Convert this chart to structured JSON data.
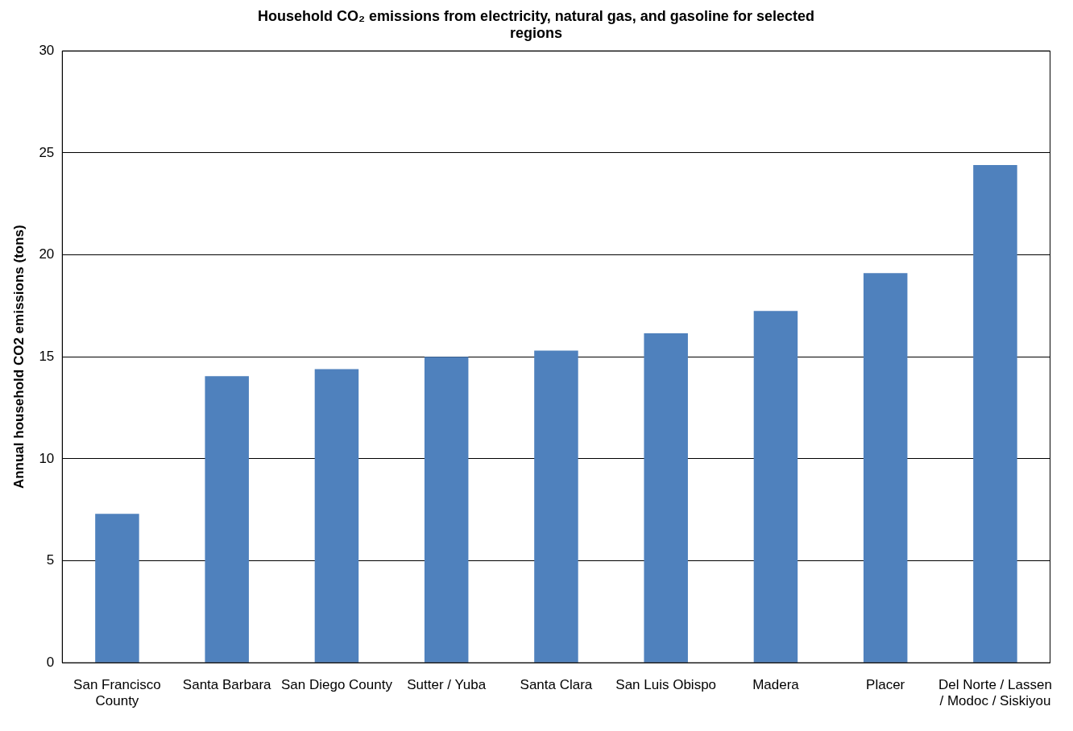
{
  "chart_data": {
    "type": "bar",
    "title": "Household CO₂ emissions from electricity, natural gas, and gasoline for selected regions",
    "ylabel": "Annual household CO2 emissions (tons)",
    "categories": [
      "San Francisco County",
      "Santa Barbara",
      "San Diego County",
      "Sutter / Yuba",
      "Santa Clara",
      "San Luis Obispo",
      "Madera",
      "Placer",
      "Del Norte / Lassen / Modoc / Siskiyou"
    ],
    "values": [
      7.3,
      14.05,
      14.4,
      15.0,
      15.3,
      16.15,
      17.25,
      19.1,
      24.4
    ],
    "color": "#4f81bd",
    "ylim": [
      0,
      30
    ],
    "yticks": [
      0,
      5,
      10,
      15,
      20,
      25,
      30
    ],
    "grid": "y",
    "legend": false
  }
}
